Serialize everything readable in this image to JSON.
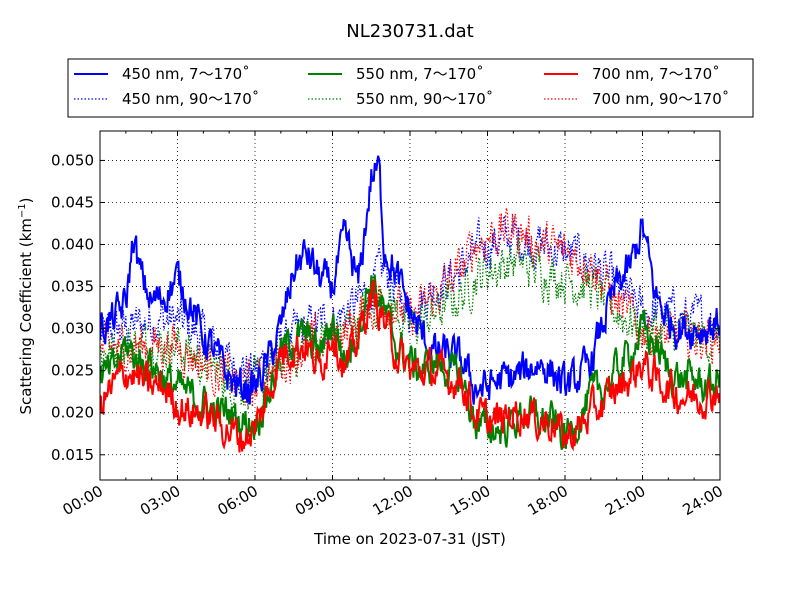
{
  "chart_data": {
    "type": "line",
    "title": "NL230731.dat",
    "xlabel": "Time on 2023-07-31 (JST)",
    "ylabel_main": "Scattering Coefficient (km",
    "ylabel_sup": "−1",
    "ylabel_close": ")",
    "xlim_hours": [
      0,
      24
    ],
    "ylim": [
      0.012,
      0.0535
    ],
    "x_ticks": [
      "00:00",
      "03:00",
      "06:00",
      "09:00",
      "12:00",
      "15:00",
      "18:00",
      "21:00",
      "24:00"
    ],
    "y_ticks": [
      "0.015",
      "0.020",
      "0.025",
      "0.030",
      "0.035",
      "0.040",
      "0.045",
      "0.050"
    ],
    "y_tick_values": [
      0.015,
      0.02,
      0.025,
      0.03,
      0.035,
      0.04,
      0.045,
      0.05
    ],
    "grid": true,
    "legend_position": "top, outside plot, 3 columns",
    "series": [
      {
        "name": "450 nm, 7～170˚",
        "color": "#0000ff",
        "style": "solid",
        "x": [
          0,
          0.5,
          1,
          1.3,
          1.5,
          2,
          2.5,
          3,
          3.5,
          4,
          4.5,
          5,
          5.5,
          6,
          6.5,
          7,
          7.5,
          8,
          8.5,
          9,
          9.5,
          10,
          10.5,
          10.8,
          11,
          11.5,
          12,
          12.5,
          13,
          13.5,
          14,
          14.5,
          15,
          15.5,
          16,
          16.5,
          17,
          17.5,
          18,
          18.5,
          19,
          19.5,
          20,
          20.5,
          21,
          21.5,
          22,
          22.5,
          23,
          23.5,
          24
        ],
        "y": [
          0.03,
          0.031,
          0.033,
          0.041,
          0.037,
          0.033,
          0.034,
          0.036,
          0.033,
          0.029,
          0.027,
          0.024,
          0.023,
          0.023,
          0.026,
          0.03,
          0.037,
          0.039,
          0.036,
          0.035,
          0.041,
          0.035,
          0.048,
          0.049,
          0.04,
          0.036,
          0.032,
          0.029,
          0.027,
          0.027,
          0.026,
          0.023,
          0.023,
          0.024,
          0.024,
          0.025,
          0.026,
          0.025,
          0.023,
          0.024,
          0.026,
          0.031,
          0.035,
          0.037,
          0.042,
          0.034,
          0.031,
          0.03,
          0.03,
          0.03,
          0.031
        ]
      },
      {
        "name": "450 nm, 90～170˚",
        "color": "#0000ff",
        "style": "dotted",
        "x": [
          0,
          1,
          2,
          3,
          4,
          5,
          6,
          7,
          8,
          9,
          10,
          11,
          12,
          13,
          14,
          14.5,
          15,
          16,
          17,
          18,
          19,
          20,
          21,
          22,
          23,
          24
        ],
        "y": [
          0.029,
          0.03,
          0.031,
          0.031,
          0.029,
          0.026,
          0.025,
          0.028,
          0.03,
          0.031,
          0.033,
          0.037,
          0.032,
          0.035,
          0.037,
          0.039,
          0.04,
          0.041,
          0.04,
          0.039,
          0.038,
          0.035,
          0.032,
          0.032,
          0.031,
          0.031
        ]
      },
      {
        "name": "550 nm, 7～170˚",
        "color": "#008000",
        "style": "solid",
        "x": [
          0,
          0.5,
          1,
          1.5,
          2,
          2.5,
          3,
          3.5,
          4,
          4.5,
          5,
          5.5,
          6,
          6.5,
          7,
          7.5,
          8,
          8.5,
          9,
          9.5,
          10,
          10.5,
          11,
          11.5,
          12,
          12.5,
          13,
          13.5,
          14,
          14.5,
          15,
          15.5,
          16,
          16.5,
          17,
          17.5,
          18,
          18.5,
          19,
          19.5,
          20,
          20.5,
          21,
          21.5,
          22,
          22.5,
          23,
          23.5,
          24
        ],
        "y": [
          0.024,
          0.025,
          0.028,
          0.026,
          0.026,
          0.024,
          0.023,
          0.022,
          0.021,
          0.02,
          0.02,
          0.019,
          0.019,
          0.022,
          0.027,
          0.029,
          0.029,
          0.027,
          0.031,
          0.026,
          0.03,
          0.036,
          0.032,
          0.028,
          0.026,
          0.025,
          0.026,
          0.025,
          0.024,
          0.019,
          0.018,
          0.018,
          0.019,
          0.02,
          0.019,
          0.019,
          0.017,
          0.019,
          0.022,
          0.023,
          0.025,
          0.027,
          0.03,
          0.028,
          0.025,
          0.024,
          0.024,
          0.023,
          0.024
        ]
      },
      {
        "name": "550 nm, 90～170˚",
        "color": "#008000",
        "style": "dotted",
        "x": [
          0,
          1,
          2,
          3,
          4,
          5,
          6,
          7,
          8,
          9,
          10,
          11,
          12,
          13,
          14,
          14.5,
          15,
          16,
          17,
          18,
          19,
          20,
          21,
          22,
          23,
          24
        ],
        "y": [
          0.027,
          0.028,
          0.028,
          0.028,
          0.026,
          0.024,
          0.023,
          0.026,
          0.028,
          0.029,
          0.031,
          0.034,
          0.03,
          0.032,
          0.034,
          0.036,
          0.037,
          0.038,
          0.037,
          0.036,
          0.035,
          0.032,
          0.03,
          0.03,
          0.029,
          0.029
        ]
      },
      {
        "name": "700 nm, 7～170˚",
        "color": "#ff0000",
        "style": "solid",
        "x": [
          0,
          0.5,
          1,
          1.5,
          2,
          2.5,
          3,
          3.5,
          4,
          4.5,
          5,
          5.5,
          6,
          6.5,
          7,
          7.5,
          8,
          8.5,
          9,
          9.5,
          10,
          10.5,
          11,
          11.5,
          12,
          12.5,
          13,
          13.5,
          14,
          14.5,
          15,
          15.5,
          16,
          16.5,
          17,
          17.5,
          18,
          18.5,
          19,
          19.5,
          20,
          20.5,
          21,
          21.5,
          22,
          22.5,
          23,
          23.5,
          24
        ],
        "y": [
          0.021,
          0.023,
          0.025,
          0.024,
          0.023,
          0.023,
          0.021,
          0.02,
          0.02,
          0.019,
          0.018,
          0.017,
          0.018,
          0.022,
          0.027,
          0.028,
          0.028,
          0.025,
          0.03,
          0.025,
          0.029,
          0.034,
          0.031,
          0.027,
          0.025,
          0.025,
          0.025,
          0.024,
          0.024,
          0.02,
          0.019,
          0.019,
          0.02,
          0.02,
          0.019,
          0.019,
          0.017,
          0.018,
          0.02,
          0.021,
          0.023,
          0.024,
          0.026,
          0.024,
          0.023,
          0.022,
          0.022,
          0.022,
          0.023
        ]
      },
      {
        "name": "700 nm, 90～170˚",
        "color": "#ff0000",
        "style": "dotted",
        "x": [
          0,
          1,
          2,
          3,
          4,
          5,
          6,
          7,
          8,
          9,
          10,
          11,
          12,
          13,
          14,
          14.5,
          15,
          16,
          17,
          18,
          19,
          20,
          21,
          22,
          23,
          24
        ],
        "y": [
          0.027,
          0.028,
          0.028,
          0.028,
          0.026,
          0.024,
          0.023,
          0.026,
          0.028,
          0.029,
          0.031,
          0.034,
          0.031,
          0.034,
          0.037,
          0.04,
          0.041,
          0.042,
          0.04,
          0.039,
          0.038,
          0.033,
          0.03,
          0.029,
          0.029,
          0.029
        ]
      }
    ]
  }
}
